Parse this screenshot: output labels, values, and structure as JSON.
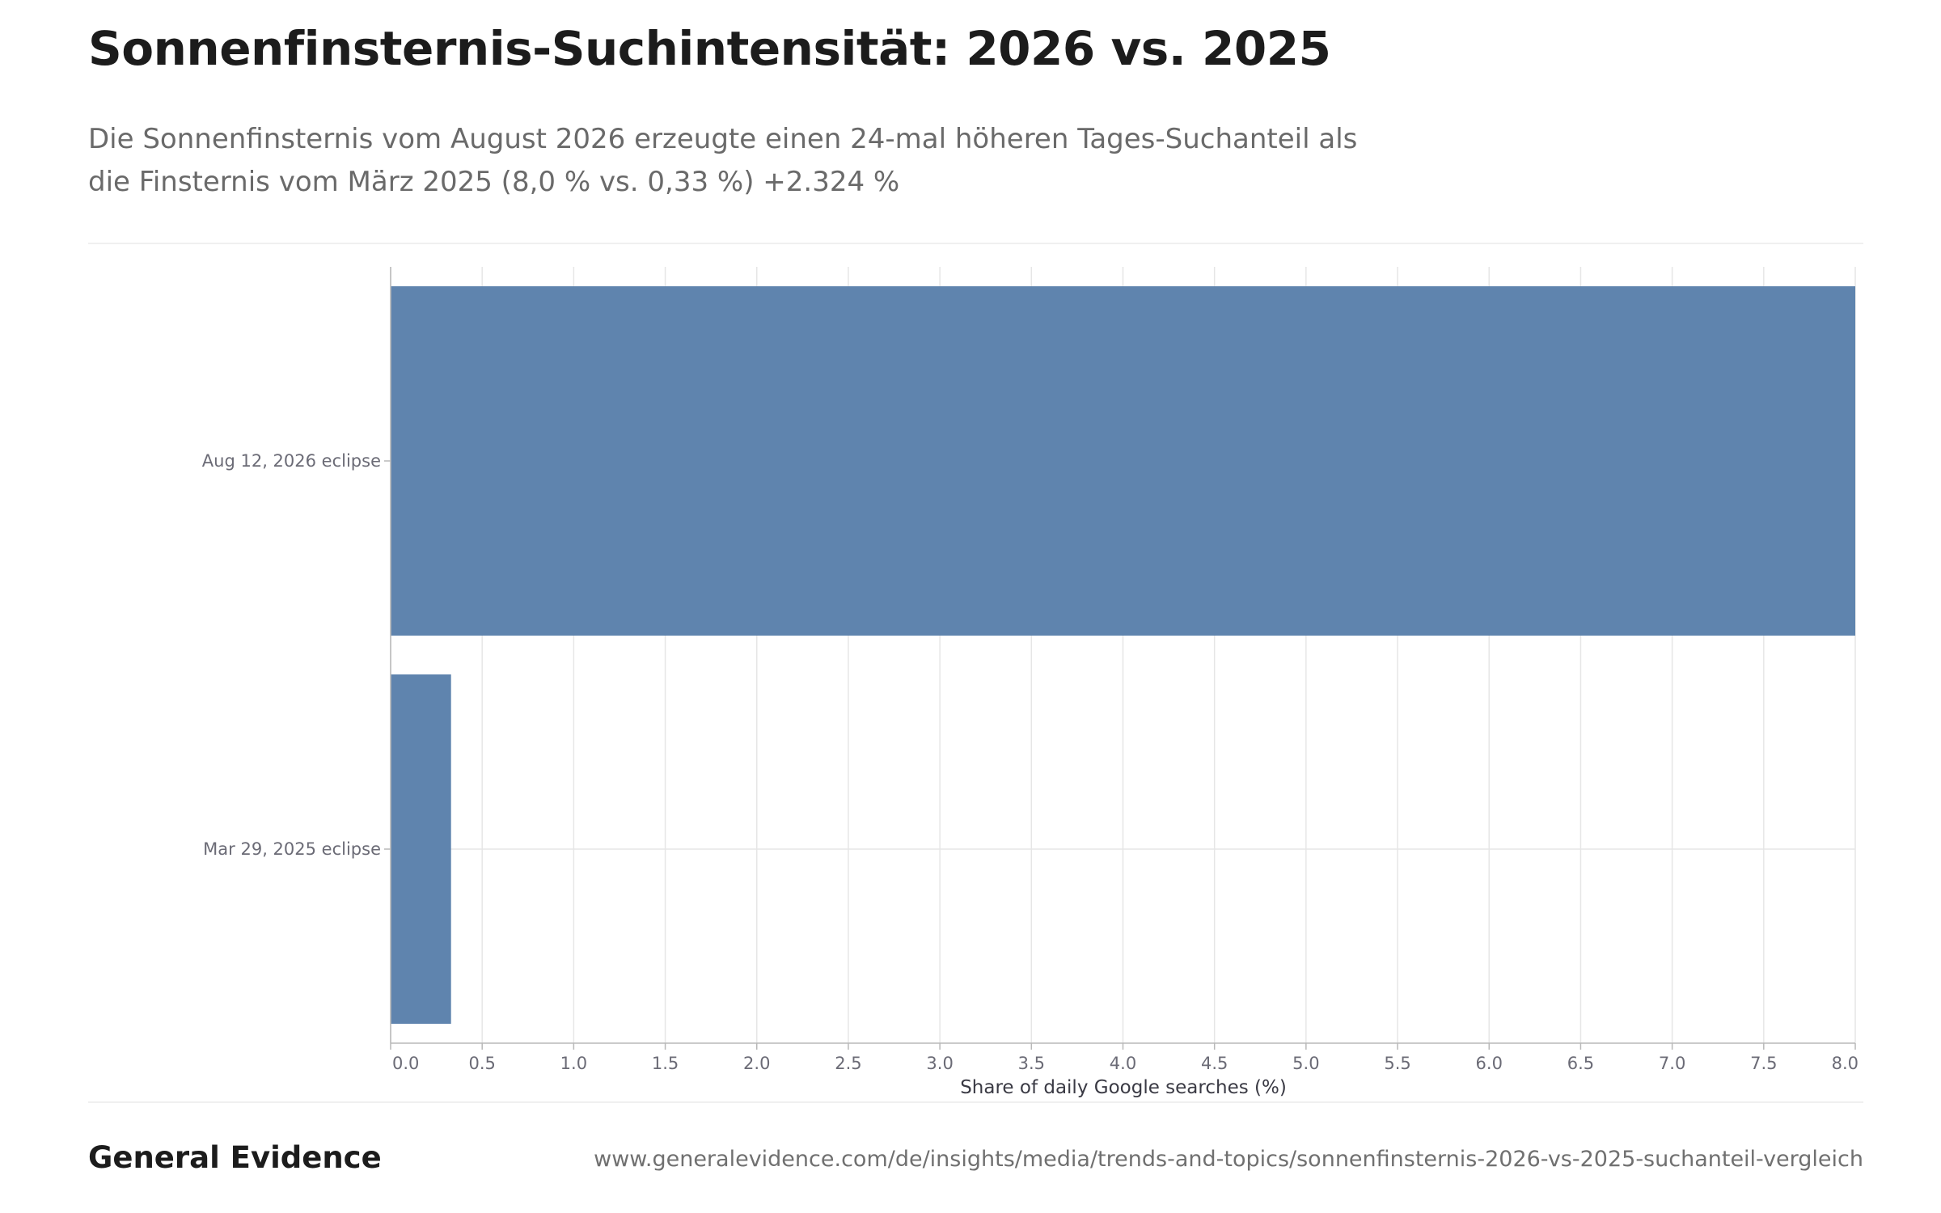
{
  "header": {
    "title": "Sonnenfinsternis-Suchintensität: 2026 vs. 2025",
    "subtitle": "Die Sonnenfinsternis vom August 2026 erzeugte einen 24-mal höheren Tages-Suchanteil als die Finsternis vom März 2025 (8,0 % vs. 0,33 %) +2.324 %"
  },
  "footer": {
    "brand": "General Evidence",
    "url": "www.generalevidence.com/de/insights/media/trends-and-topics/sonnenfinsternis-2026-vs-2025-suchanteil-vergleich"
  },
  "colors": {
    "bar": "#5f84ae",
    "grid": "#e6e6e6",
    "axis": "#b8b8b8",
    "tick_text": "#6b6b76",
    "axis_label": "#3a3a44"
  },
  "chart_data": {
    "type": "bar",
    "orientation": "horizontal",
    "categories": [
      "Aug 12, 2026 eclipse",
      "Mar 29, 2025 eclipse"
    ],
    "values": [
      8.0,
      0.33
    ],
    "xlabel": "Share of daily Google searches (%)",
    "ylabel": "",
    "xlim": [
      0,
      8.0
    ],
    "xticks": [
      "0.0",
      "0.5",
      "1.0",
      "1.5",
      "2.0",
      "2.5",
      "3.0",
      "3.5",
      "4.0",
      "4.5",
      "5.0",
      "5.5",
      "6.0",
      "6.5",
      "7.0",
      "7.5",
      "8.0"
    ],
    "grid": true,
    "legend": "none"
  }
}
